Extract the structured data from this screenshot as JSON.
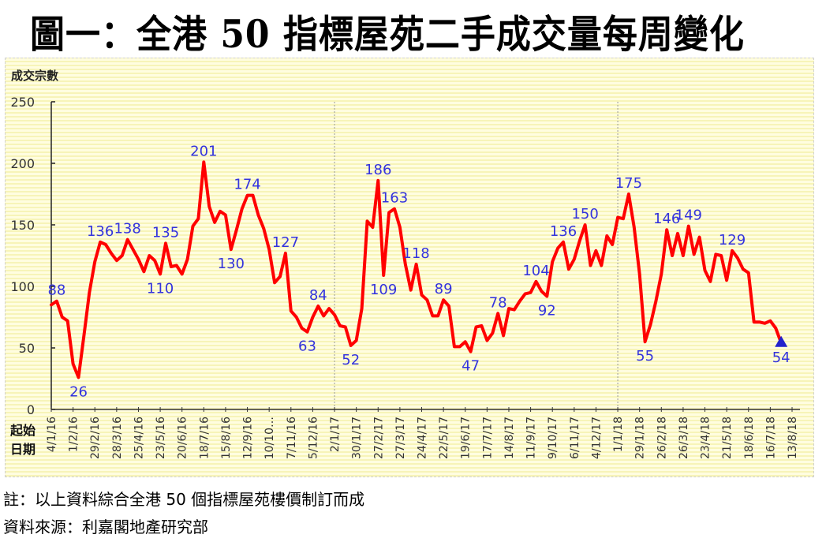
{
  "title": "圖一：全港 50 指標屋苑二手成交量每周變化",
  "footer": {
    "note": "註：以上資料綜合全港 50 個指標屋苑樓價制訂而成",
    "source": "資料來源：利嘉閣地產研究部"
  },
  "colors": {
    "line": "#ff0000",
    "label": "#3333dd",
    "marker": "#2222cc"
  },
  "chart_data": {
    "type": "line",
    "title": "圖一：全港 50 指標屋苑二手成交量每周變化",
    "ylabel": "成交宗數",
    "xlabel": "起始日期",
    "xlabel_lines": [
      "起始",
      "日期"
    ],
    "ylim": [
      0,
      250
    ],
    "yticks": [
      "0",
      "50",
      "100",
      "150",
      "200",
      "250"
    ],
    "xtick_labels": [
      "4/1/16",
      "1/2/16",
      "29/2/16",
      "28/3/16",
      "25/4/16",
      "23/5/16",
      "20/6/16",
      "18/7/16",
      "15/8/16",
      "12/9/16",
      "10/10…",
      "7/11/16",
      "5/12/16",
      "2/1/17",
      "30/1/17",
      "27/2/17",
      "27/3/17",
      "24/4/17",
      "22/5/17",
      "19/6/17",
      "17/7/17",
      "14/8/17",
      "11/9/17",
      "9/10/17",
      "6/11/17",
      "4/12/17",
      "1/1/18",
      "29/1/18",
      "26/2/18",
      "26/3/18",
      "23/4/18",
      "21/5/18",
      "18/6/18",
      "16/7/18",
      "13/8/18"
    ],
    "year_dividers": [
      "2/1/17",
      "1/1/18"
    ],
    "series": [
      {
        "name": "成交宗數",
        "values": [
          85,
          88,
          75,
          72,
          37,
          26,
          60,
          95,
          120,
          136,
          134,
          127,
          121,
          125,
          138,
          130,
          122,
          112,
          125,
          121,
          110,
          135,
          116,
          117,
          110,
          122,
          149,
          155,
          201,
          165,
          152,
          161,
          158,
          130,
          146,
          163,
          174,
          174,
          158,
          147,
          130,
          103,
          108,
          127,
          80,
          75,
          66,
          63,
          75,
          84,
          76,
          82,
          77,
          68,
          67,
          52,
          56,
          82,
          153,
          148,
          186,
          109,
          160,
          163,
          148,
          118,
          97,
          118,
          93,
          89,
          76,
          76,
          89,
          84,
          51,
          51,
          55,
          47,
          67,
          68,
          56,
          62,
          78,
          60,
          82,
          81,
          88,
          94,
          95,
          104,
          96,
          92,
          120,
          131,
          136,
          114,
          122,
          137,
          150,
          117,
          129,
          117,
          141,
          134,
          156,
          155,
          175,
          148,
          110,
          55,
          69,
          88,
          110,
          146,
          125,
          143,
          125,
          149,
          126,
          140,
          113,
          104,
          126,
          125,
          105,
          129,
          123,
          114,
          111,
          71,
          71,
          70,
          72,
          66,
          54
        ]
      }
    ],
    "annotations": [
      {
        "index": 1,
        "value": 88,
        "text": "88",
        "pos": "above"
      },
      {
        "index": 5,
        "value": 26,
        "text": "26",
        "pos": "below"
      },
      {
        "index": 9,
        "value": 136,
        "text": "136",
        "pos": "above"
      },
      {
        "index": 14,
        "value": 138,
        "text": "138",
        "pos": "above"
      },
      {
        "index": 20,
        "value": 110,
        "text": "110",
        "pos": "below"
      },
      {
        "index": 21,
        "value": 135,
        "text": "135",
        "pos": "above"
      },
      {
        "index": 28,
        "value": 201,
        "text": "201",
        "pos": "above"
      },
      {
        "index": 33,
        "value": 130,
        "text": "130",
        "pos": "below"
      },
      {
        "index": 36,
        "value": 174,
        "text": "174",
        "pos": "above"
      },
      {
        "index": 43,
        "value": 127,
        "text": "127",
        "pos": "above"
      },
      {
        "index": 47,
        "value": 63,
        "text": "63",
        "pos": "below"
      },
      {
        "index": 49,
        "value": 84,
        "text": "84",
        "pos": "above"
      },
      {
        "index": 55,
        "value": 52,
        "text": "52",
        "pos": "below"
      },
      {
        "index": 60,
        "value": 186,
        "text": "186",
        "pos": "above"
      },
      {
        "index": 61,
        "value": 109,
        "text": "109",
        "pos": "below"
      },
      {
        "index": 63,
        "value": 163,
        "text": "163",
        "pos": "above"
      },
      {
        "index": 67,
        "value": 118,
        "text": "118",
        "pos": "above"
      },
      {
        "index": 72,
        "value": 89,
        "text": "89",
        "pos": "above"
      },
      {
        "index": 77,
        "value": 47,
        "text": "47",
        "pos": "below"
      },
      {
        "index": 82,
        "value": 78,
        "text": "78",
        "pos": "above"
      },
      {
        "index": 89,
        "value": 104,
        "text": "104",
        "pos": "above"
      },
      {
        "index": 91,
        "value": 92,
        "text": "92",
        "pos": "below"
      },
      {
        "index": 94,
        "value": 136,
        "text": "136",
        "pos": "above"
      },
      {
        "index": 98,
        "value": 150,
        "text": "150",
        "pos": "above"
      },
      {
        "index": 106,
        "value": 175,
        "text": "175",
        "pos": "above"
      },
      {
        "index": 109,
        "value": 55,
        "text": "55",
        "pos": "below"
      },
      {
        "index": 113,
        "value": 146,
        "text": "146",
        "pos": "above"
      },
      {
        "index": 117,
        "value": 149,
        "text": "149",
        "pos": "above"
      },
      {
        "index": 125,
        "value": 129,
        "text": "129",
        "pos": "above"
      },
      {
        "index": 134,
        "value": 54,
        "text": "54",
        "pos": "below"
      }
    ],
    "last_point_marker": "triangle",
    "grid": false,
    "legend": "none"
  }
}
